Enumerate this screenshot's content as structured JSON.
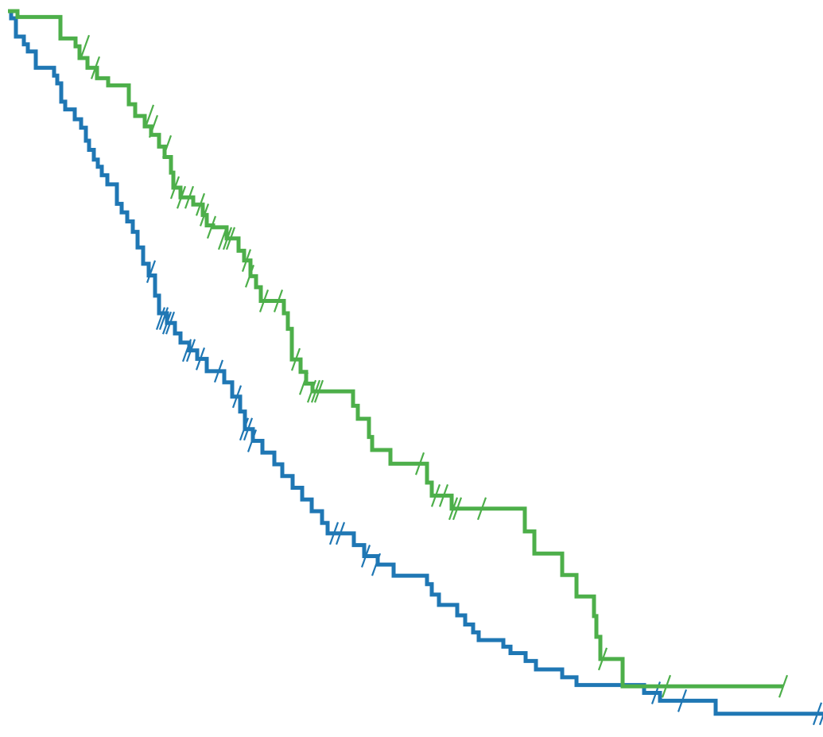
{
  "chart_data": {
    "type": "line",
    "title": "",
    "xlabel": "",
    "ylabel": "",
    "grid": false,
    "legend": "none",
    "xlim": [
      0,
      1000
    ],
    "ylim": [
      0,
      1
    ],
    "series": [
      {
        "color": "#1f77b4",
        "steps": [
          [
            0,
            1.0
          ],
          [
            4,
            0.989
          ],
          [
            10,
            0.961
          ],
          [
            20,
            0.949
          ],
          [
            25,
            0.938
          ],
          [
            35,
            0.913
          ],
          [
            58,
            0.901
          ],
          [
            62,
            0.889
          ],
          [
            67,
            0.861
          ],
          [
            72,
            0.849
          ],
          [
            84,
            0.834
          ],
          [
            92,
            0.821
          ],
          [
            98,
            0.801
          ],
          [
            102,
            0.787
          ],
          [
            108,
            0.772
          ],
          [
            113,
            0.761
          ],
          [
            118,
            0.748
          ],
          [
            125,
            0.734
          ],
          [
            137,
            0.704
          ],
          [
            143,
            0.691
          ],
          [
            150,
            0.677
          ],
          [
            157,
            0.661
          ],
          [
            163,
            0.637
          ],
          [
            170,
            0.612
          ],
          [
            177,
            0.594
          ],
          [
            185,
            0.563
          ],
          [
            190,
            0.536
          ],
          [
            200,
            0.521
          ],
          [
            210,
            0.505
          ],
          [
            217,
            0.491
          ],
          [
            228,
            0.479
          ],
          [
            238,
            0.466
          ],
          [
            250,
            0.447
          ],
          [
            272,
            0.43
          ],
          [
            282,
            0.408
          ],
          [
            292,
            0.385
          ],
          [
            298,
            0.358
          ],
          [
            308,
            0.34
          ],
          [
            320,
            0.322
          ],
          [
            335,
            0.304
          ],
          [
            345,
            0.286
          ],
          [
            358,
            0.268
          ],
          [
            370,
            0.25
          ],
          [
            382,
            0.232
          ],
          [
            395,
            0.214
          ],
          [
            402,
            0.198
          ],
          [
            435,
            0.18
          ],
          [
            448,
            0.163
          ],
          [
            465,
            0.15
          ],
          [
            485,
            0.133
          ],
          [
            527,
            0.12
          ],
          [
            533,
            0.104
          ],
          [
            542,
            0.088
          ],
          [
            565,
            0.072
          ],
          [
            575,
            0.058
          ],
          [
            585,
            0.046
          ],
          [
            592,
            0.034
          ],
          [
            623,
            0.024
          ],
          [
            632,
            0.014
          ],
          [
            651,
            0.002
          ],
          [
            664,
            -0.011
          ],
          [
            697,
            -0.023
          ],
          [
            715,
            -0.035
          ],
          [
            800,
            -0.047
          ],
          [
            820,
            -0.059
          ],
          [
            890,
            -0.079
          ],
          [
            1030,
            -0.079
          ]
        ],
        "censored": [
          [
            180,
            0.6
          ],
          [
            192,
            0.528
          ],
          [
            196,
            0.528
          ],
          [
            200,
            0.521
          ],
          [
            204,
            0.521
          ],
          [
            225,
            0.479
          ],
          [
            230,
            0.479
          ],
          [
            242,
            0.466
          ],
          [
            265,
            0.447
          ],
          [
            288,
            0.408
          ],
          [
            297,
            0.358
          ],
          [
            302,
            0.358
          ],
          [
            307,
            0.34
          ],
          [
            410,
            0.198
          ],
          [
            418,
            0.198
          ],
          [
            450,
            0.163
          ],
          [
            463,
            0.15
          ],
          [
            815,
            -0.047
          ],
          [
            848,
            -0.059
          ],
          [
            1018,
            -0.079
          ],
          [
            1026,
            -0.079
          ]
        ]
      },
      {
        "color": "#4daf4a",
        "steps": [
          [
            0,
            1.0
          ],
          [
            12,
            0.991
          ],
          [
            66,
            0.958
          ],
          [
            85,
            0.946
          ],
          [
            90,
            0.928
          ],
          [
            100,
            0.913
          ],
          [
            112,
            0.897
          ],
          [
            126,
            0.886
          ],
          [
            152,
            0.857
          ],
          [
            160,
            0.839
          ],
          [
            172,
            0.823
          ],
          [
            180,
            0.81
          ],
          [
            190,
            0.792
          ],
          [
            197,
            0.776
          ],
          [
            205,
            0.752
          ],
          [
            208,
            0.729
          ],
          [
            217,
            0.714
          ],
          [
            233,
            0.703
          ],
          [
            245,
            0.687
          ],
          [
            250,
            0.671
          ],
          [
            258,
            0.668
          ],
          [
            275,
            0.651
          ],
          [
            290,
            0.632
          ],
          [
            297,
            0.617
          ],
          [
            305,
            0.593
          ],
          [
            312,
            0.576
          ],
          [
            318,
            0.555
          ],
          [
            347,
            0.536
          ],
          [
            352,
            0.512
          ],
          [
            357,
            0.465
          ],
          [
            368,
            0.446
          ],
          [
            375,
            0.428
          ],
          [
            383,
            0.416
          ],
          [
            434,
            0.394
          ],
          [
            440,
            0.374
          ],
          [
            454,
            0.346
          ],
          [
            458,
            0.326
          ],
          [
            481,
            0.305
          ],
          [
            527,
            0.276
          ],
          [
            533,
            0.256
          ],
          [
            558,
            0.236
          ],
          [
            650,
            0.201
          ],
          [
            662,
            0.167
          ],
          [
            697,
            0.134
          ],
          [
            715,
            0.101
          ],
          [
            737,
            0.071
          ],
          [
            740,
            0.039
          ],
          [
            745,
            0.005
          ],
          [
            773,
            -0.037
          ],
          [
            975,
            -0.037
          ]
        ],
        "censored": [
          [
            97,
            0.946
          ],
          [
            110,
            0.913
          ],
          [
            178,
            0.839
          ],
          [
            183,
            0.823
          ],
          [
            200,
            0.792
          ],
          [
            210,
            0.729
          ],
          [
            218,
            0.714
          ],
          [
            228,
            0.714
          ],
          [
            242,
            0.703
          ],
          [
            247,
            0.687
          ],
          [
            256,
            0.668
          ],
          [
            270,
            0.651
          ],
          [
            276,
            0.651
          ],
          [
            280,
            0.651
          ],
          [
            300,
            0.617
          ],
          [
            304,
            0.593
          ],
          [
            322,
            0.555
          ],
          [
            340,
            0.555
          ],
          [
            362,
            0.465
          ],
          [
            372,
            0.428
          ],
          [
            382,
            0.416
          ],
          [
            387,
            0.416
          ],
          [
            391,
            0.416
          ],
          [
            518,
            0.305
          ],
          [
            538,
            0.256
          ],
          [
            548,
            0.256
          ],
          [
            560,
            0.236
          ],
          [
            565,
            0.236
          ],
          [
            596,
            0.236
          ],
          [
            748,
            0.005
          ],
          [
            828,
            -0.037
          ],
          [
            975,
            -0.037
          ]
        ]
      }
    ]
  }
}
